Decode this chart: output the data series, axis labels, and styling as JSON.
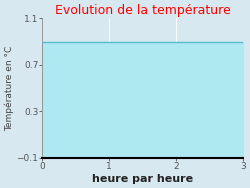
{
  "title": "Evolution de la température",
  "title_color": "#ff0000",
  "xlabel": "heure par heure",
  "ylabel": "Température en °C",
  "xlim": [
    0,
    3
  ],
  "ylim": [
    -0.1,
    1.1
  ],
  "yticks": [
    -0.1,
    0.3,
    0.7,
    1.1
  ],
  "xticks": [
    0,
    1,
    2,
    3
  ],
  "line_y": 0.9,
  "line_color": "#5bbccc",
  "fill_color": "#aee8f0",
  "background_color": "#d8e8f0",
  "plot_bg_color": "#d8e8f0",
  "grid_color": "#ffffff",
  "title_fontsize": 9,
  "xlabel_fontsize": 8,
  "ylabel_fontsize": 6.5,
  "tick_fontsize": 6.5
}
